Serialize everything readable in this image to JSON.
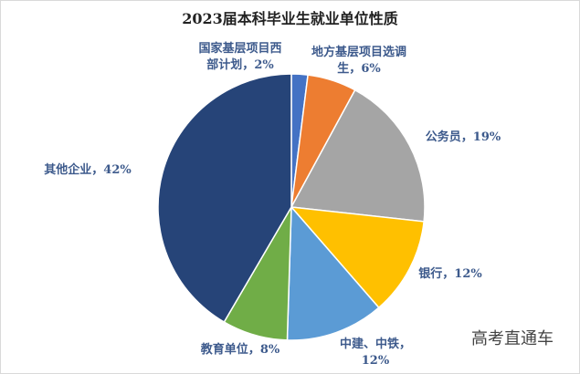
{
  "chart_data": {
    "type": "pie",
    "title": "2023届本科毕业生就业单位性质",
    "categories": [
      "国家基层项目西部计划",
      "地方基层项目选调生",
      "公务员",
      "银行",
      "中建、中铁",
      "教育单位",
      "其他企业"
    ],
    "values": [
      2,
      6,
      19,
      12,
      12,
      8,
      42
    ],
    "value_labels": [
      "2%",
      "6%",
      "19%",
      "12%",
      "12%",
      "8%",
      "42%"
    ],
    "label_separator": "，",
    "colors": [
      "#4472c4",
      "#ed7d31",
      "#a5a5a5",
      "#ffc000",
      "#5b9bd5",
      "#70ad47",
      "#264478"
    ]
  },
  "watermark": "高考直通车"
}
